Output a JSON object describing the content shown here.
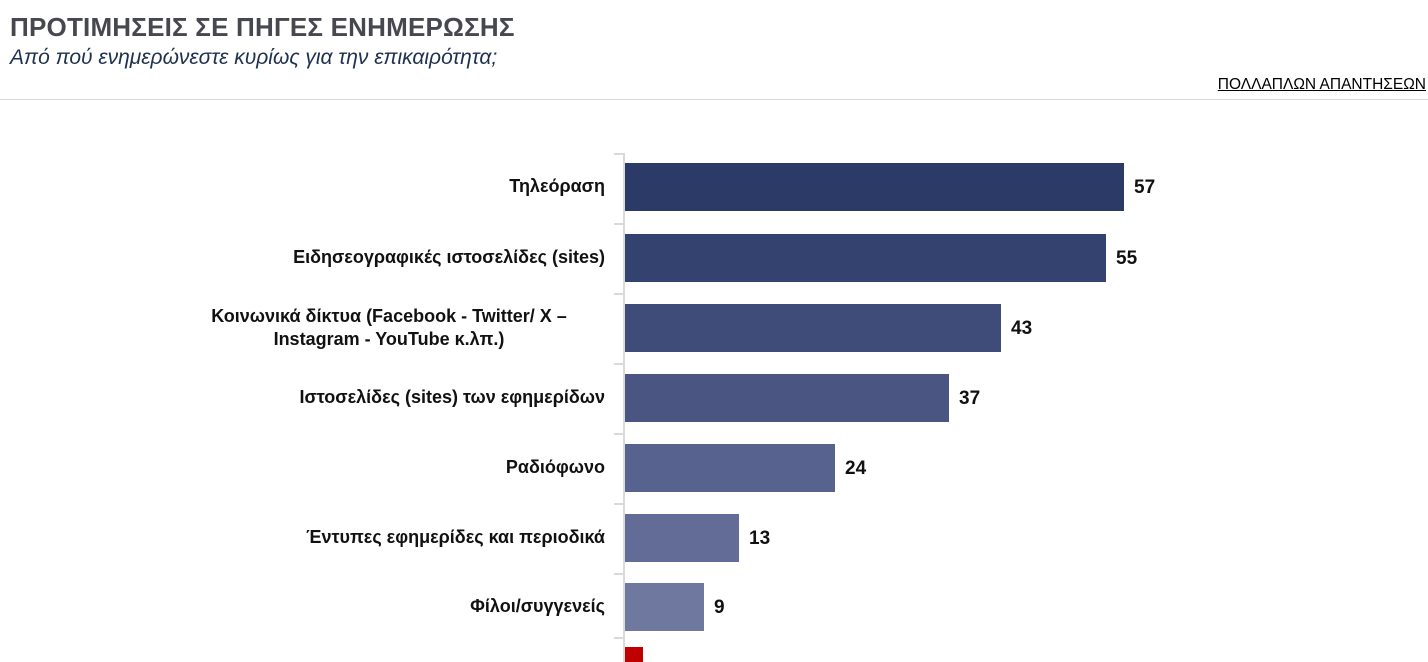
{
  "header": {
    "title": "ΠΡΟΤΙΜΗΣΕΙΣ ΣΕ ΠΗΓΕΣ ΕΝΗΜΕΡΩΣΗΣ",
    "subtitle": "Από πού ενημερώνεστε κυρίως για την επικαιρότητα;",
    "note": "ΠΟΛΛΑΠΛΩΝ ΑΠΑΝΤΗΣΕΩΝ"
  },
  "chart_data": {
    "type": "bar",
    "orientation": "horizontal",
    "title": "ΠΡΟΤΙΜΗΣΕΙΣ ΣΕ ΠΗΓΕΣ ΕΝΗΜΕΡΩΣΗΣ",
    "subtitle": "Από πού ενημερώνεστε κυρίως για την επικαιρότητα;",
    "annotation": "ΠΟΛΛΑΠΛΩΝ ΑΠΑΝΤΗΣΕΩΝ",
    "categories": [
      "Τηλεόραση",
      "Ειδησεογραφικές ιστοσελίδες (sites)",
      "Κοινωνικά δίκτυα (Facebook - Twitter/ X – Instagram - YouTube κ.λπ.)",
      "Ιστοσελίδες (sites) των εφημερίδων",
      "Ραδιόφωνο",
      "Έντυπες εφημερίδες και περιοδικά",
      "Φίλοι/συγγενείς"
    ],
    "values": [
      57,
      55,
      43,
      37,
      24,
      13,
      9
    ],
    "bar_colors": [
      "#2b3a67",
      "#33426f",
      "#3f4b78",
      "#4a5582",
      "#57628f",
      "#626c97",
      "#6f79a0"
    ],
    "cutoff_bar": {
      "color": "#c00000",
      "approx_value": 2,
      "note": "eighth bar only partially visible at the bottom edge; its category label and value are cut off"
    },
    "xlim": [
      0,
      60
    ],
    "grid": false,
    "legend": "none",
    "value_labels_shown": true,
    "axis_color": "#d9d9d9",
    "text_color": "#111111"
  }
}
